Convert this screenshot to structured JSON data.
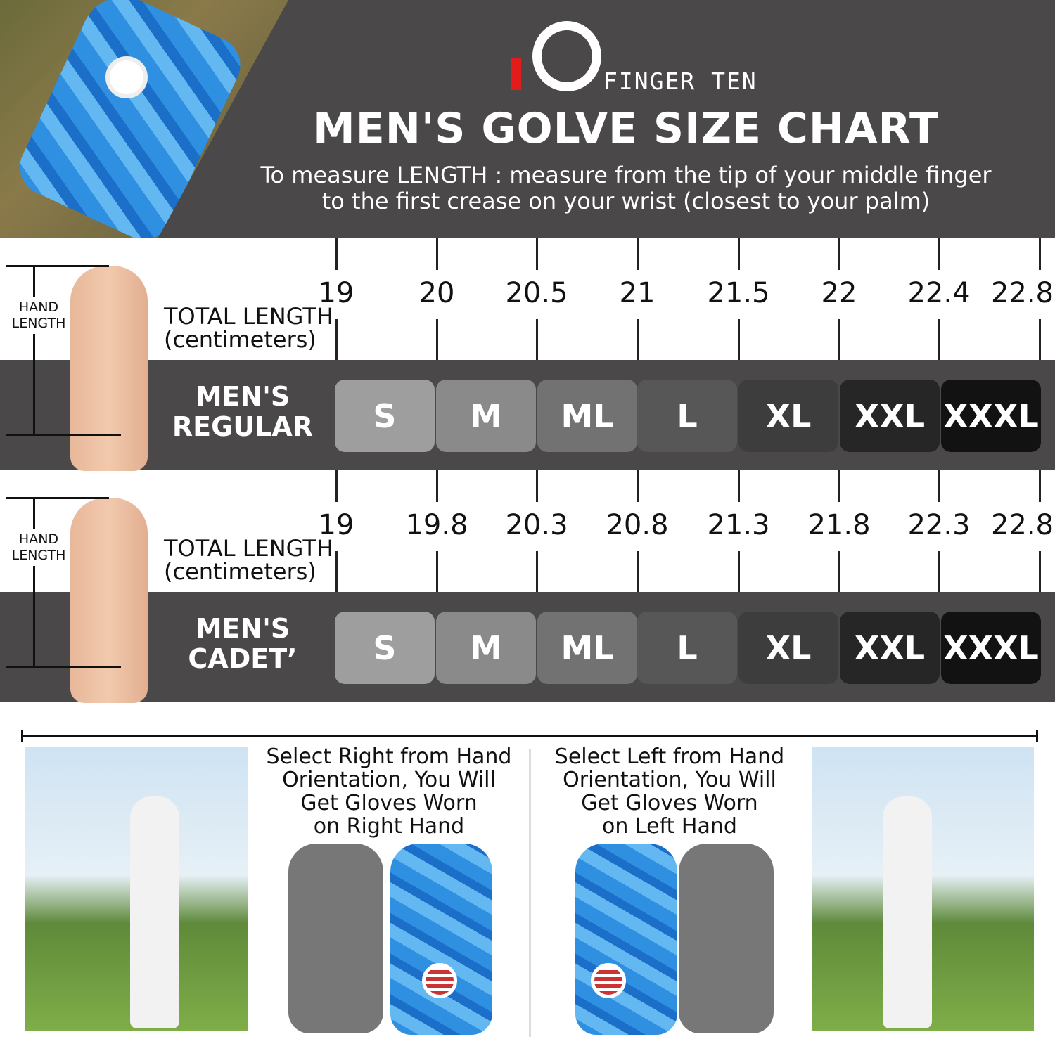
{
  "brand": {
    "name": "FINGER TEN",
    "accent": "#e21b1b"
  },
  "header": {
    "title": "MEN'S GOLVE SIZE CHART",
    "subtitle_line1": "To measure LENGTH : measure from the tip of your middle finger",
    "subtitle_line2": "to the first crease on your wrist (closest to your palm)"
  },
  "sizes": [
    "S",
    "M",
    "ML",
    "L",
    "XL",
    "XXL",
    "XXXL"
  ],
  "size_colors": [
    "#9e9e9e",
    "#8a8a8a",
    "#727272",
    "#575757",
    "#3d3d3d",
    "#262626",
    "#121212"
  ],
  "charts": [
    {
      "hand_label": "HAND LENGTH",
      "total_length_line1": "TOTAL LENGTH",
      "total_length_line2": "(centimeters)",
      "category_line1": "MEN'S",
      "category_line2": "REGULAR",
      "lengths": [
        "19",
        "20",
        "20.5",
        "21",
        "21.5",
        "22",
        "22.4",
        "22.8"
      ]
    },
    {
      "hand_label": "HAND LENGTH",
      "total_length_line1": "TOTAL LENGTH",
      "total_length_line2": "(centimeters)",
      "category_line1": "MEN'S",
      "category_line2": "CADET’",
      "lengths": [
        "19",
        "19.8",
        "20.3",
        "20.8",
        "21.3",
        "21.8",
        "22.3",
        "22.8"
      ]
    }
  ],
  "orientation": {
    "right": [
      "Select Right from Hand",
      "Orientation, You Will",
      "Get Gloves Worn",
      "on Right Hand"
    ],
    "left": [
      "Select Left from Hand",
      "Orientation, You Will",
      "Get Gloves Worn",
      "on Left Hand"
    ]
  }
}
